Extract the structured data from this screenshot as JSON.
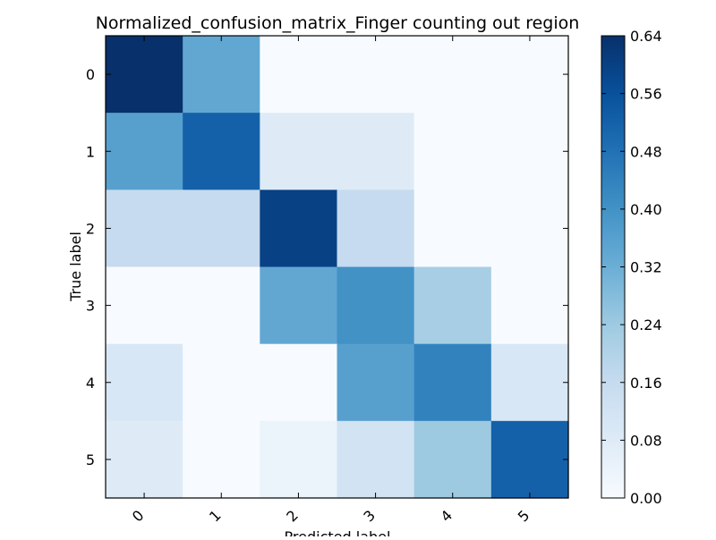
{
  "chart_data": {
    "type": "heatmap",
    "title": "Normalized_confusion_matrix_Finger counting out region",
    "xlabel": "Predicted label",
    "ylabel": "True label",
    "x_categories": [
      "0",
      "1",
      "2",
      "3",
      "4",
      "5"
    ],
    "y_categories": [
      "0",
      "1",
      "2",
      "3",
      "4",
      "5"
    ],
    "values": [
      [
        0.64,
        0.34,
        0.0,
        0.0,
        0.0,
        0.0
      ],
      [
        0.36,
        0.52,
        0.08,
        0.08,
        0.0,
        0.0
      ],
      [
        0.16,
        0.16,
        0.6,
        0.16,
        0.0,
        0.0
      ],
      [
        0.0,
        0.0,
        0.34,
        0.4,
        0.22,
        0.0
      ],
      [
        0.1,
        0.0,
        0.0,
        0.36,
        0.44,
        0.1
      ],
      [
        0.08,
        0.0,
        0.04,
        0.12,
        0.24,
        0.52
      ]
    ],
    "colorbar": {
      "min": 0.0,
      "max": 0.64,
      "ticks": [
        "0.00",
        "0.08",
        "0.16",
        "0.24",
        "0.32",
        "0.40",
        "0.48",
        "0.56",
        "0.64"
      ]
    },
    "colormap": [
      "#f7fbff",
      "#deebf7",
      "#c6dbef",
      "#9ecae1",
      "#6baed6",
      "#4292c6",
      "#2171b5",
      "#08519c",
      "#08306b"
    ]
  }
}
